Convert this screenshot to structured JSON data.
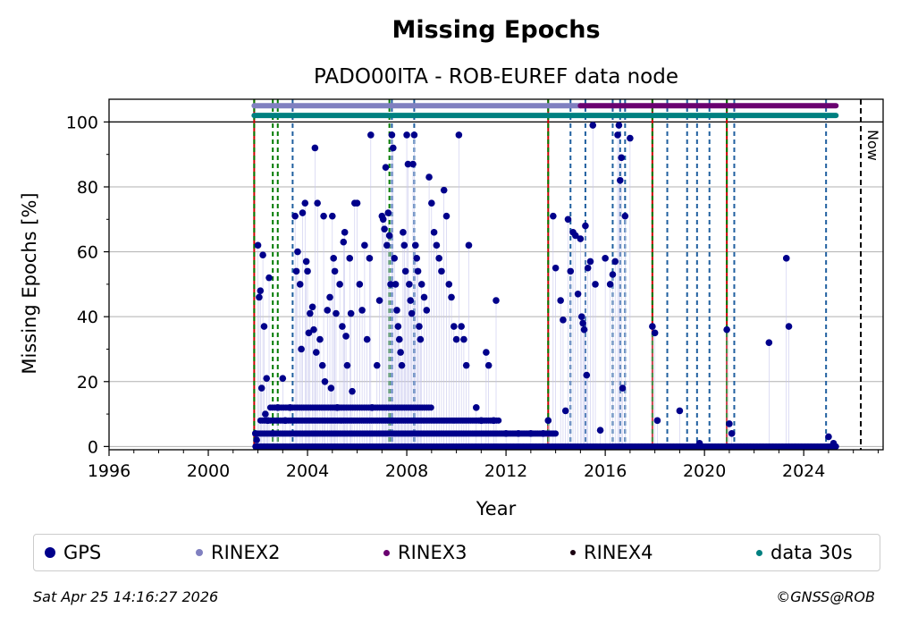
{
  "chart_data": {
    "type": "scatter",
    "title": "Missing Epochs",
    "subtitle": "PADO00ITA - ROB-EUREF data node",
    "xlabel": "Year",
    "ylabel": "Missing Epochs [%]",
    "xlim": [
      1996,
      2027.2
    ],
    "ylim": [
      -1,
      107
    ],
    "xticks": [
      "1996",
      "2000",
      "2004",
      "2008",
      "2012",
      "2016",
      "2020",
      "2024"
    ],
    "yticks": [
      "0",
      "20",
      "40",
      "60",
      "80",
      "100"
    ],
    "grid": "horizontal",
    "now_label": "Now",
    "now_year": 2026.3,
    "legend_position": "bottom",
    "series": [
      {
        "name": "GPS",
        "color": "#00008b",
        "points": [
          [
            2001.9,
            4
          ],
          [
            2001.95,
            2
          ],
          [
            2002.0,
            62
          ],
          [
            2002.05,
            46
          ],
          [
            2002.1,
            48
          ],
          [
            2002.15,
            18
          ],
          [
            2002.2,
            59
          ],
          [
            2002.25,
            37
          ],
          [
            2002.3,
            10
          ],
          [
            2002.35,
            21
          ],
          [
            2002.4,
            8
          ],
          [
            2002.45,
            52
          ],
          [
            2002.6,
            4
          ],
          [
            2002.8,
            12
          ],
          [
            2003.0,
            21
          ],
          [
            2003.1,
            8
          ],
          [
            2003.3,
            12
          ],
          [
            2003.5,
            71
          ],
          [
            2003.55,
            54
          ],
          [
            2003.6,
            60
          ],
          [
            2003.7,
            50
          ],
          [
            2003.75,
            30
          ],
          [
            2003.8,
            72
          ],
          [
            2003.9,
            75
          ],
          [
            2003.95,
            57
          ],
          [
            2004.0,
            54
          ],
          [
            2004.05,
            35
          ],
          [
            2004.1,
            41
          ],
          [
            2004.2,
            43
          ],
          [
            2004.25,
            36
          ],
          [
            2004.3,
            92
          ],
          [
            2004.35,
            29
          ],
          [
            2004.4,
            75
          ],
          [
            2004.5,
            33
          ],
          [
            2004.6,
            25
          ],
          [
            2004.65,
            71
          ],
          [
            2004.7,
            20
          ],
          [
            2004.8,
            42
          ],
          [
            2004.9,
            46
          ],
          [
            2004.95,
            18
          ],
          [
            2005.0,
            71
          ],
          [
            2005.05,
            58
          ],
          [
            2005.1,
            54
          ],
          [
            2005.15,
            41
          ],
          [
            2005.2,
            12
          ],
          [
            2005.3,
            50
          ],
          [
            2005.4,
            37
          ],
          [
            2005.45,
            63
          ],
          [
            2005.5,
            66
          ],
          [
            2005.55,
            34
          ],
          [
            2005.6,
            25
          ],
          [
            2005.7,
            58
          ],
          [
            2005.75,
            41
          ],
          [
            2005.8,
            17
          ],
          [
            2005.9,
            75
          ],
          [
            2006.0,
            75
          ],
          [
            2006.1,
            50
          ],
          [
            2006.2,
            42
          ],
          [
            2006.3,
            62
          ],
          [
            2006.4,
            33
          ],
          [
            2006.5,
            58
          ],
          [
            2006.55,
            96
          ],
          [
            2006.6,
            12
          ],
          [
            2006.8,
            25
          ],
          [
            2006.9,
            45
          ],
          [
            2007.0,
            71
          ],
          [
            2007.05,
            70
          ],
          [
            2007.1,
            67
          ],
          [
            2007.15,
            86
          ],
          [
            2007.2,
            62
          ],
          [
            2007.25,
            72
          ],
          [
            2007.3,
            65
          ],
          [
            2007.35,
            50
          ],
          [
            2007.4,
            96
          ],
          [
            2007.45,
            92
          ],
          [
            2007.5,
            58
          ],
          [
            2007.55,
            50
          ],
          [
            2007.6,
            42
          ],
          [
            2007.65,
            37
          ],
          [
            2007.7,
            33
          ],
          [
            2007.75,
            29
          ],
          [
            2007.8,
            25
          ],
          [
            2007.85,
            66
          ],
          [
            2007.9,
            62
          ],
          [
            2007.95,
            54
          ],
          [
            2008.0,
            96
          ],
          [
            2008.05,
            87
          ],
          [
            2008.1,
            50
          ],
          [
            2008.15,
            45
          ],
          [
            2008.2,
            41
          ],
          [
            2008.25,
            87
          ],
          [
            2008.3,
            96
          ],
          [
            2008.35,
            62
          ],
          [
            2008.4,
            58
          ],
          [
            2008.45,
            54
          ],
          [
            2008.5,
            37
          ],
          [
            2008.55,
            33
          ],
          [
            2008.6,
            50
          ],
          [
            2008.7,
            46
          ],
          [
            2008.8,
            42
          ],
          [
            2008.9,
            83
          ],
          [
            2009.0,
            75
          ],
          [
            2009.1,
            66
          ],
          [
            2009.2,
            62
          ],
          [
            2009.3,
            58
          ],
          [
            2009.4,
            54
          ],
          [
            2009.5,
            79
          ],
          [
            2009.6,
            71
          ],
          [
            2009.7,
            50
          ],
          [
            2009.8,
            46
          ],
          [
            2009.9,
            37
          ],
          [
            2010.0,
            33
          ],
          [
            2010.1,
            96
          ],
          [
            2010.2,
            37
          ],
          [
            2010.3,
            33
          ],
          [
            2010.4,
            25
          ],
          [
            2010.5,
            62
          ],
          [
            2010.8,
            12
          ],
          [
            2011.0,
            8
          ],
          [
            2011.2,
            29
          ],
          [
            2011.3,
            25
          ],
          [
            2011.5,
            8
          ],
          [
            2011.6,
            45
          ],
          [
            2012.0,
            4
          ],
          [
            2012.5,
            4
          ],
          [
            2013.0,
            4
          ],
          [
            2013.5,
            4
          ],
          [
            2013.7,
            8
          ],
          [
            2013.9,
            71
          ],
          [
            2014.0,
            55
          ],
          [
            2014.2,
            45
          ],
          [
            2014.3,
            39
          ],
          [
            2014.4,
            11
          ],
          [
            2014.5,
            70
          ],
          [
            2014.6,
            54
          ],
          [
            2014.7,
            66
          ],
          [
            2014.8,
            65
          ],
          [
            2014.9,
            47
          ],
          [
            2015.0,
            64
          ],
          [
            2015.05,
            40
          ],
          [
            2015.1,
            38
          ],
          [
            2015.15,
            36
          ],
          [
            2015.2,
            68
          ],
          [
            2015.25,
            22
          ],
          [
            2015.3,
            55
          ],
          [
            2015.4,
            57
          ],
          [
            2015.5,
            99
          ],
          [
            2015.6,
            50
          ],
          [
            2015.8,
            5
          ],
          [
            2016.0,
            58
          ],
          [
            2016.2,
            50
          ],
          [
            2016.3,
            53
          ],
          [
            2016.4,
            57
          ],
          [
            2016.5,
            96
          ],
          [
            2016.55,
            99
          ],
          [
            2016.6,
            82
          ],
          [
            2016.65,
            89
          ],
          [
            2016.7,
            18
          ],
          [
            2016.8,
            71
          ],
          [
            2017.0,
            95
          ],
          [
            2017.9,
            37
          ],
          [
            2018.0,
            35
          ],
          [
            2018.1,
            8
          ],
          [
            2019.0,
            11
          ],
          [
            2019.8,
            1
          ],
          [
            2020.9,
            36
          ],
          [
            2021.0,
            7
          ],
          [
            2021.1,
            4
          ],
          [
            2022.6,
            32
          ],
          [
            2023.3,
            58
          ],
          [
            2023.4,
            37
          ],
          [
            2025.0,
            3
          ],
          [
            2025.2,
            1
          ]
        ]
      },
      {
        "name": "RINEX2",
        "color": "#8080c0",
        "range": [
          2001.85,
          2015.0
        ],
        "y": 105
      },
      {
        "name": "RINEX3",
        "color": "#6a0070",
        "range": [
          2015.0,
          2025.3
        ],
        "y": 105
      },
      {
        "name": "RINEX4",
        "color": "#1a0010",
        "range": [],
        "y": 105
      },
      {
        "name": "data 30s",
        "color": "#008080",
        "range": [
          2001.85,
          2025.3
        ],
        "y": 102
      }
    ],
    "event_lines": {
      "red": [
        2001.85,
        2013.7,
        2017.9,
        2020.9
      ],
      "green": [
        2001.85,
        2002.6,
        2002.8,
        2007.3,
        2013.7,
        2017.9,
        2020.9
      ],
      "blue": [
        2003.4,
        2007.4,
        2008.3,
        2014.6,
        2015.2,
        2016.3,
        2016.6,
        2016.8,
        2018.5,
        2019.3,
        2019.7,
        2020.2,
        2021.2,
        2024.9
      ]
    }
  },
  "footer": {
    "timestamp": "Sat Apr 25 14:16:27 2026",
    "copyright": "©GNSS@ROB"
  }
}
